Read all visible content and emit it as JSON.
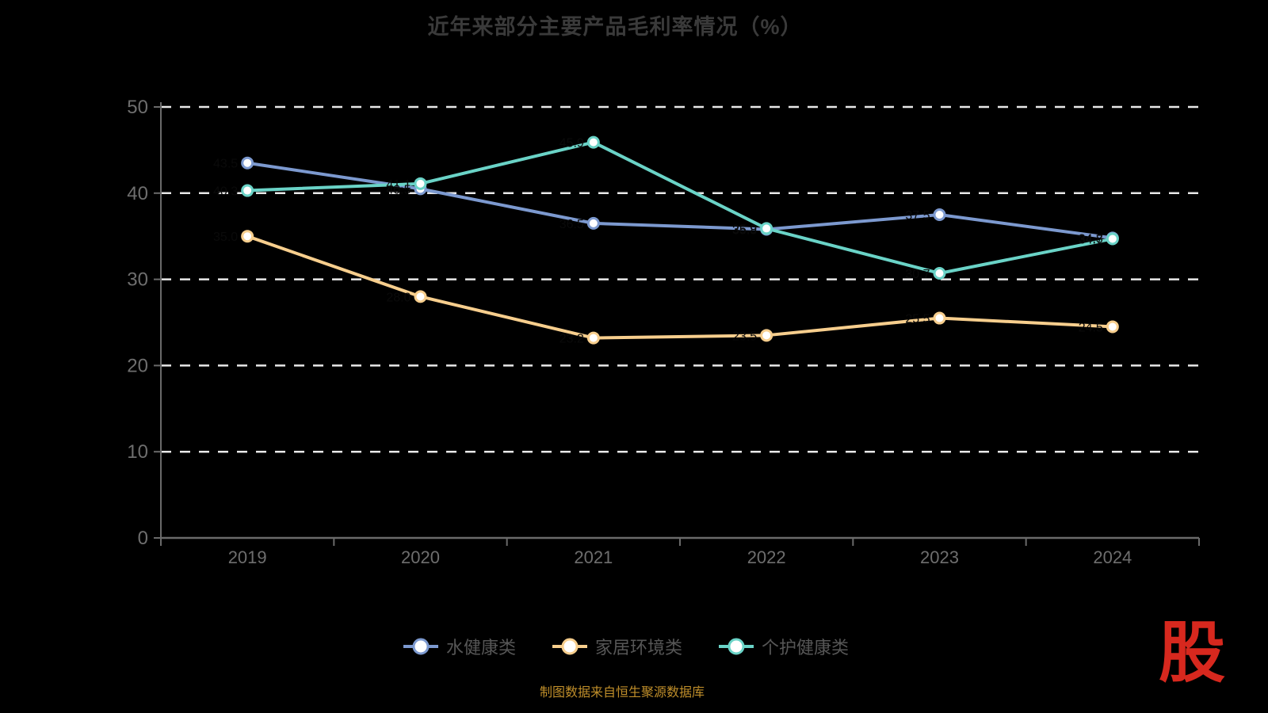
{
  "title": "近年来部分主要产品毛利率情况（%）",
  "caption": "制图数据来自恒生聚源数据库",
  "logo_text": "股",
  "colors": {
    "background": "#000000",
    "title_text": "#3a3a3a",
    "axis_line": "#6a6a6a",
    "axis_tick_label": "#6e6e6e",
    "gridline": "#e8e8e8",
    "legend_text": "#565656",
    "caption_text": "#bf8e2a",
    "logo_red": "#d7281e",
    "data_label": "#0a0a0a",
    "marker_fill": "#ffffff"
  },
  "chart_data": {
    "type": "line",
    "title": "近年来部分主要产品毛利率情况（%）",
    "categories": [
      "2019",
      "2020",
      "2021",
      "2022",
      "2023",
      "2024"
    ],
    "series": [
      {
        "name": "水健康类",
        "color": "#7c99cf",
        "values": [
          43.5,
          40.5,
          36.5,
          35.8,
          37.5,
          34.8
        ]
      },
      {
        "name": "家居环境类",
        "color": "#f7ce8d",
        "values": [
          35.0,
          28.0,
          23.2,
          23.5,
          25.5,
          24.5
        ]
      },
      {
        "name": "个护健康类",
        "color": "#6ad3c7",
        "values": [
          40.3,
          41.1,
          45.9,
          35.9,
          30.7,
          34.7
        ]
      }
    ],
    "xlabel": "",
    "ylabel": "",
    "ylim": [
      0,
      50
    ],
    "yticks": [
      0,
      10,
      20,
      30,
      40,
      50
    ],
    "grid": true,
    "gridline_style": "dashed",
    "legend_position": "bottom",
    "data_labels_color": "#0a0a0a"
  }
}
